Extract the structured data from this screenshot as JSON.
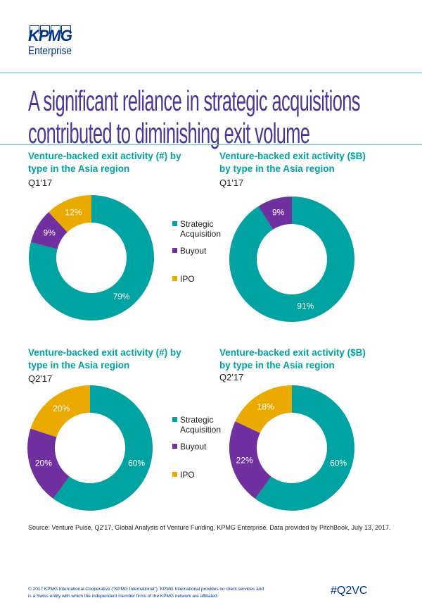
{
  "logo": {
    "brand": "KPMG",
    "sub": "Enterprise"
  },
  "headline": [
    "A significant reliance in strategic acquisitions",
    "contributed to diminishing exit volume"
  ],
  "legend": [
    {
      "label": "Strategic Acquisition",
      "color": "#00A3A1"
    },
    {
      "label": "Buyout",
      "color": "#7030A0"
    },
    {
      "label": "IPO",
      "color": "#EAAA00"
    }
  ],
  "chart_data": [
    {
      "type": "pie",
      "title": "Venture-backed exit activity (#) by type in the Asia region",
      "title_lines": [
        "Venture-backed exit activity (#) by",
        "type in the Asia region"
      ],
      "period": "Q1'17",
      "categories": [
        "Strategic Acquisition",
        "Buyout",
        "IPO"
      ],
      "values": [
        79,
        9,
        12
      ],
      "labels": [
        "79%",
        "9%",
        "12%"
      ]
    },
    {
      "type": "pie",
      "title": "Venture-backed exit activity ($B) by type in the Asia region",
      "title_lines": [
        "Venture-backed exit activity ($B)",
        "by type in the Asia region"
      ],
      "period": "Q1'17",
      "categories": [
        "Strategic Acquisition",
        "Buyout",
        "IPO"
      ],
      "values": [
        91,
        9,
        0
      ],
      "labels": [
        "91%",
        "9%",
        ""
      ]
    },
    {
      "type": "pie",
      "title": "Venture-backed exit activity (#) by type in the Asia region",
      "title_lines": [
        "Venture-backed exit activity (#) by",
        "type in the Asia region"
      ],
      "period": "Q2'17",
      "categories": [
        "Strategic Acquisition",
        "Buyout",
        "IPO"
      ],
      "values": [
        60,
        20,
        20
      ],
      "labels": [
        "60%",
        "20%",
        "20%"
      ]
    },
    {
      "type": "pie",
      "title": "Venture-backed exit activity ($B) by type in the Asia region",
      "title_lines": [
        "Venture-backed exit activity ($B)",
        "by type in the Asia region"
      ],
      "period": "Q2'17",
      "categories": [
        "Strategic Acquisition",
        "Buyout",
        "IPO"
      ],
      "values": [
        60,
        22,
        18
      ],
      "labels": [
        "60%",
        "22%",
        "18%"
      ]
    }
  ],
  "source": "Source: Venture Pulse, Q2'17, Global Analysis of Venture Funding, KPMG Enterprise. Data provided by PitchBook, July 13, 2017.",
  "copyright": "© 2017 KPMG International Cooperative (\"KPMG International\"). KPMG International provides no client services and is a Swiss entity with which the independent member firms of the KPMG network are affiliated.",
  "hashtag": "#Q2VC"
}
